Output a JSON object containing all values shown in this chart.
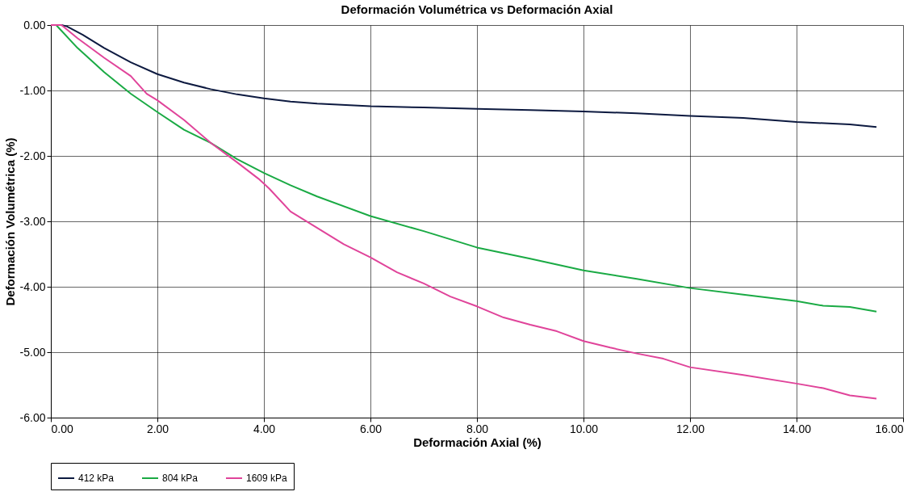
{
  "chart_data": {
    "type": "line",
    "title": "Deformación Volumétrica vs Deformación Axial",
    "xlabel": "Deformación Axial (%)",
    "ylabel": "Deformación Volumétrica (%)",
    "xlim": [
      0,
      16
    ],
    "ylim": [
      -6,
      0
    ],
    "xticks": [
      {
        "value": 0,
        "label": "0.00"
      },
      {
        "value": 2,
        "label": "2.00"
      },
      {
        "value": 4,
        "label": "4.00"
      },
      {
        "value": 6,
        "label": "6.00"
      },
      {
        "value": 8,
        "label": "8.00"
      },
      {
        "value": 10,
        "label": "10.00"
      },
      {
        "value": 12,
        "label": "12.00"
      },
      {
        "value": 14,
        "label": "14.00"
      },
      {
        "value": 16,
        "label": "16.00"
      }
    ],
    "yticks": [
      {
        "value": -6,
        "label": "-6.00"
      },
      {
        "value": -5,
        "label": "-5.00"
      },
      {
        "value": -4,
        "label": "-4.00"
      },
      {
        "value": -3,
        "label": "-3.00"
      },
      {
        "value": -2,
        "label": "-2.00"
      },
      {
        "value": -1,
        "label": "-1.00"
      },
      {
        "value": 0,
        "label": "0.00"
      }
    ],
    "grid": true,
    "legend": "bottom",
    "marker": "none",
    "line_style": "solid",
    "series": [
      {
        "name": "412 kPa",
        "color": "#0d1a40",
        "x": [
          0,
          0.2,
          0.3,
          0.6,
          1.0,
          1.5,
          2.0,
          2.5,
          3.0,
          3.5,
          4.0,
          4.5,
          5.0,
          6.0,
          7.0,
          8.0,
          9.0,
          10.0,
          11.0,
          12.0,
          13.0,
          13.5,
          14.0,
          15.0,
          15.5
        ],
        "values": [
          0,
          0,
          -0.02,
          -0.15,
          -0.35,
          -0.57,
          -0.75,
          -0.88,
          -0.98,
          -1.06,
          -1.12,
          -1.17,
          -1.2,
          -1.24,
          -1.26,
          -1.28,
          -1.3,
          -1.32,
          -1.35,
          -1.39,
          -1.42,
          -1.45,
          -1.48,
          -1.52,
          -1.56
        ]
      },
      {
        "name": "804 kPa",
        "color": "#1aaa44",
        "x": [
          0,
          0.1,
          0.5,
          1.0,
          1.5,
          2.0,
          2.5,
          3.0,
          3.5,
          4.0,
          4.5,
          5.0,
          6.0,
          7.0,
          8.0,
          9.0,
          10.0,
          11.0,
          12.0,
          13.0,
          14.0,
          14.5,
          15.0,
          15.5
        ],
        "values": [
          0,
          0,
          -0.35,
          -0.72,
          -1.05,
          -1.33,
          -1.6,
          -1.8,
          -2.05,
          -2.26,
          -2.45,
          -2.62,
          -2.92,
          -3.15,
          -3.4,
          -3.57,
          -3.75,
          -3.88,
          -4.02,
          -4.12,
          -4.22,
          -4.29,
          -4.31,
          -4.38
        ]
      },
      {
        "name": "1609 kPa",
        "color": "#e0449a",
        "x": [
          0,
          0.2,
          0.5,
          1.0,
          1.5,
          1.8,
          2.0,
          2.5,
          3.0,
          3.5,
          3.9,
          4.1,
          4.5,
          5.0,
          5.5,
          6.0,
          6.5,
          7.0,
          7.5,
          8.0,
          8.5,
          9.0,
          9.5,
          10.0,
          10.5,
          11.0,
          11.5,
          12.0,
          13.0,
          14.0,
          14.5,
          15.0,
          15.5
        ],
        "values": [
          0,
          0,
          -0.2,
          -0.5,
          -0.78,
          -1.05,
          -1.15,
          -1.45,
          -1.8,
          -2.1,
          -2.35,
          -2.5,
          -2.85,
          -3.1,
          -3.35,
          -3.55,
          -3.78,
          -3.95,
          -4.15,
          -4.3,
          -4.47,
          -4.58,
          -4.68,
          -4.83,
          -4.93,
          -5.02,
          -5.1,
          -5.23,
          -5.35,
          -5.48,
          -5.55,
          -5.66,
          -5.71
        ]
      }
    ]
  }
}
